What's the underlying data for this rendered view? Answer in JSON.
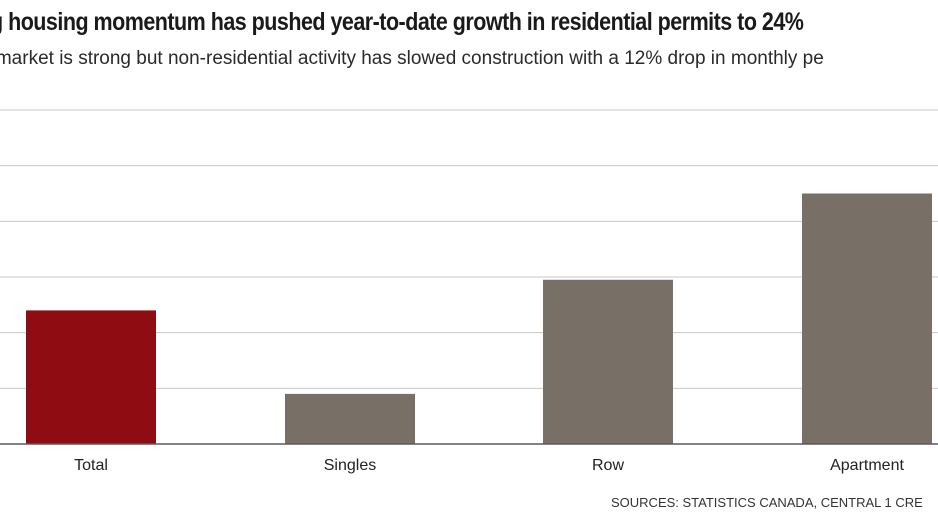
{
  "header": {
    "title": "g housing momentum has pushed year-to-date growth in residential permits to 24%",
    "subtitle": "g market is strong but non-residential activity has slowed construction with a 12% drop in monthly pe"
  },
  "footer": {
    "source": "SOURCES: STATISTICS CANADA, CENTRAL 1 CRE"
  },
  "colors": {
    "highlight": "#8f0c12",
    "bar": "#786f67",
    "grid": "#c9c9c9",
    "axis": "#5a5a5a"
  },
  "chart_data": {
    "type": "bar",
    "categories": [
      "Total",
      "Singles",
      "Row",
      "Apartment"
    ],
    "values": [
      24,
      9,
      29.5,
      45
    ],
    "bar_colors": [
      "#8f0c12",
      "#786f67",
      "#786f67",
      "#786f67"
    ],
    "ylim": [
      0,
      60
    ],
    "grid": true,
    "title": "g housing momentum has pushed year-to-date growth in residential permits to 24%",
    "xlabel": "",
    "ylabel": ""
  }
}
